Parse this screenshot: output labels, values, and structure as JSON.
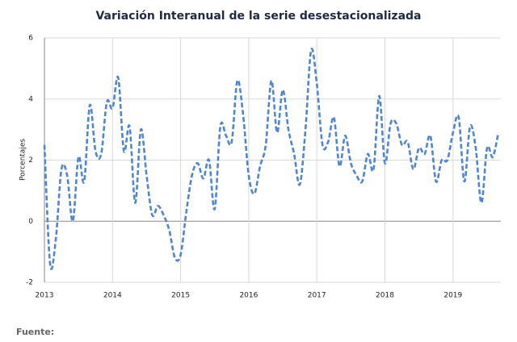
{
  "chart_data": {
    "type": "line",
    "title": "Variación Interanual de la serie desestacionalizada",
    "y_label": "Porcentajes",
    "note": "Fuente:",
    "categories": [
      "2013",
      null,
      null,
      null,
      null,
      null,
      null,
      null,
      null,
      null,
      null,
      null,
      "2014",
      null,
      null,
      null,
      null,
      null,
      null,
      null,
      null,
      null,
      null,
      null,
      "2015",
      null,
      null,
      null,
      null,
      null,
      null,
      null,
      null,
      null,
      null,
      null,
      "2016",
      null,
      null,
      null,
      null,
      null,
      null,
      null,
      null,
      null,
      null,
      null,
      "2017",
      null,
      null,
      null,
      null,
      null,
      null,
      null,
      null,
      null,
      null,
      null,
      "2018",
      null,
      null,
      null,
      null,
      null,
      null,
      null,
      null,
      null,
      null,
      null,
      "2019",
      null,
      null,
      null,
      null,
      null,
      null,
      null,
      null
    ],
    "series": [
      {
        "color": "#4f86cf",
        "values": [
          2.5,
          -1.4,
          -0.6,
          1.7,
          1.5,
          0.0,
          2.1,
          1.3,
          3.8,
          2.3,
          2.2,
          3.9,
          3.7,
          4.7,
          2.3,
          3.1,
          0.6,
          3.0,
          1.5,
          0.2,
          0.5,
          0.2,
          -0.3,
          -1.2,
          -1.1,
          0.3,
          1.5,
          1.9,
          1.4,
          2.0,
          0.4,
          3.1,
          2.8,
          2.6,
          4.6,
          3.5,
          1.5,
          0.9,
          1.8,
          2.5,
          4.6,
          2.9,
          4.3,
          3.0,
          2.2,
          1.2,
          3.0,
          5.6,
          4.5,
          2.5,
          2.6,
          3.4,
          1.8,
          2.8,
          1.9,
          1.5,
          1.3,
          2.2,
          1.7,
          4.1,
          1.9,
          3.2,
          3.2,
          2.5,
          2.6,
          1.7,
          2.4,
          2.2,
          2.8,
          1.3,
          2.0,
          2.0,
          2.9,
          3.4,
          1.3,
          3.1,
          2.4,
          0.6,
          2.4,
          2.1,
          2.9
        ]
      }
    ],
    "ylim": [
      -2,
      6
    ],
    "yticks": [
      -2,
      0,
      2,
      4,
      6
    ],
    "grid": true
  }
}
